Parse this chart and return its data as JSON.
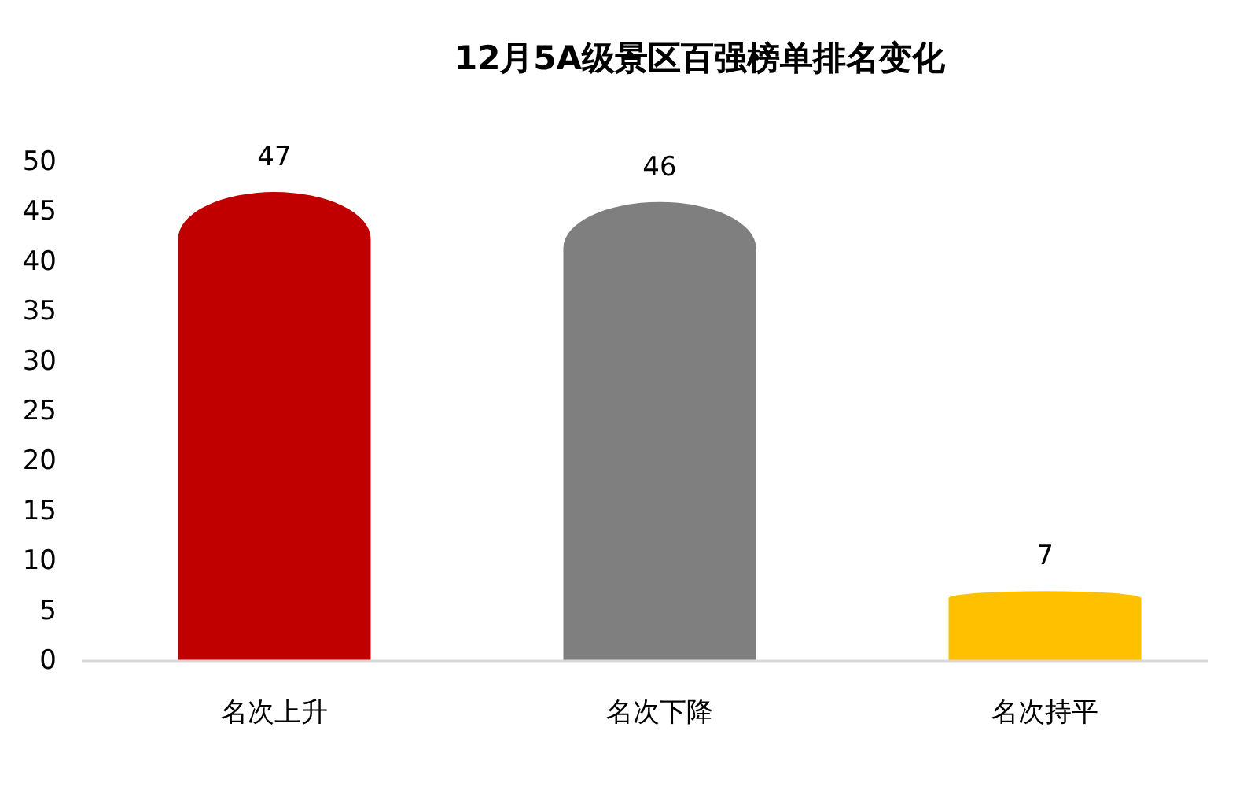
{
  "chart_data": {
    "type": "bar",
    "title": "12月5A级景区百强榜单排名变化",
    "categories": [
      "名次上升",
      "名次下降",
      "名次持平"
    ],
    "values": [
      47,
      46,
      7
    ],
    "colors": [
      "#c00000",
      "#7f7f7f",
      "#ffc000"
    ],
    "ylim": [
      0,
      50
    ],
    "yticks": [
      0,
      5,
      10,
      15,
      20,
      25,
      30,
      35,
      40,
      45,
      50
    ],
    "data_labels": true
  }
}
